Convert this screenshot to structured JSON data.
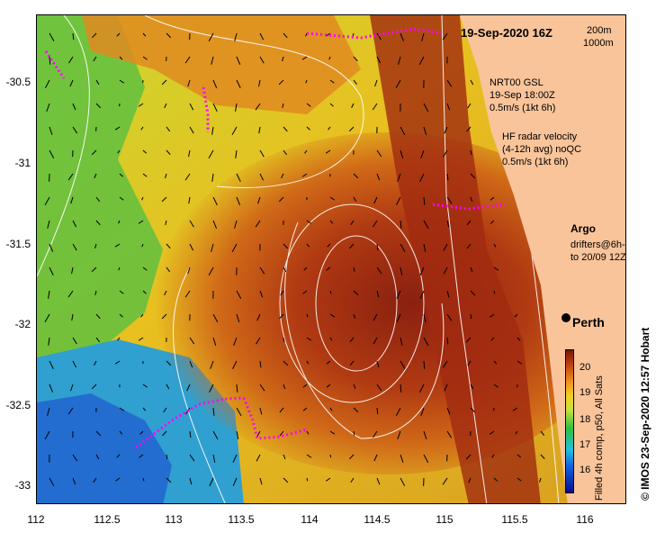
{
  "map": {
    "title": "19-Sep-2020 16Z",
    "depth_legend": [
      "200m",
      "1000m"
    ],
    "nrt_block": [
      "NRT00 GSL",
      "19-Sep 18:00Z",
      "0.5m/s (1kt 6h)"
    ],
    "hf_block": [
      "HF radar velocity",
      "(4-12h avg) noQC",
      "0.5m/s (1kt 6h)"
    ],
    "argo_label": "Argo",
    "drifter_label": [
      "drifters@6h-",
      "to 20/09 12Z"
    ],
    "city_label": "Perth",
    "colorbar_label": "Filled 4h comp, p50, All Sats",
    "colorbar_ticks": [
      "20",
      "19",
      "18",
      "17",
      "16"
    ],
    "credit": "© IMOS 23-Sep-2020 12:57 Hobart",
    "lat_ticks": [
      "-30.5",
      "-31",
      "-31.5",
      "-32",
      "-32.5",
      "-33"
    ],
    "lon_ticks": [
      "112",
      "112.5",
      "113",
      "113.5",
      "114",
      "114.5",
      "115",
      "115.5",
      "116"
    ],
    "colors": {
      "land": "#f9c49a",
      "accent_drifter": "#ff00ff",
      "hf_arrow": "#ff00ff"
    }
  }
}
